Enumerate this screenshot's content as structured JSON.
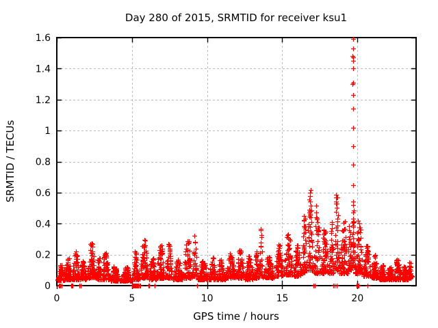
{
  "chart_data": {
    "type": "scatter",
    "title": "Day 280 of 2015, SRMTID for receiver ksu1",
    "xlabel": "GPS time / hours",
    "ylabel": "SRMTID / TECUs",
    "xlim": [
      0,
      23.9
    ],
    "ylim": [
      0,
      1.6
    ],
    "xticks": [
      {
        "v": 0,
        "label": "0"
      },
      {
        "v": 5,
        "label": "5"
      },
      {
        "v": 10,
        "label": "10"
      },
      {
        "v": 15,
        "label": "15"
      },
      {
        "v": 20,
        "label": "20"
      }
    ],
    "yticks": [
      {
        "v": 0,
        "label": "0"
      },
      {
        "v": 0.2,
        "label": "0.2"
      },
      {
        "v": 0.4,
        "label": "0.4"
      },
      {
        "v": 0.6,
        "label": "0.6"
      },
      {
        "v": 0.8,
        "label": "0.8"
      },
      {
        "v": 1,
        "label": "1"
      },
      {
        "v": 1.2,
        "label": "1.2"
      },
      {
        "v": 1.4,
        "label": "1.4"
      },
      {
        "v": 1.6,
        "label": "1.6"
      }
    ],
    "grid": {
      "visible": true,
      "color": "#b9b9b9",
      "dash": "3,3"
    },
    "marker": {
      "shape": "plus",
      "color": "#ff0000",
      "size": 7
    },
    "legend": null,
    "band_segments": [
      [
        0.03,
        0.5,
        60,
        0.035,
        0.14
      ],
      [
        0.5,
        1.0,
        60,
        0.04,
        0.18
      ],
      [
        1.0,
        1.5,
        65,
        0.04,
        0.23
      ],
      [
        1.5,
        2.0,
        60,
        0.04,
        0.16
      ],
      [
        2.0,
        2.6,
        75,
        0.05,
        0.28
      ],
      [
        2.6,
        3.0,
        50,
        0.04,
        0.18
      ],
      [
        3.0,
        3.5,
        60,
        0.04,
        0.22
      ],
      [
        3.5,
        4.2,
        80,
        0.03,
        0.13
      ],
      [
        4.2,
        5.0,
        85,
        0.03,
        0.12
      ],
      [
        5.0,
        5.5,
        55,
        0.04,
        0.22
      ],
      [
        5.5,
        6.1,
        70,
        0.05,
        0.3
      ],
      [
        6.1,
        6.6,
        55,
        0.04,
        0.18
      ],
      [
        6.6,
        7.2,
        70,
        0.05,
        0.26
      ],
      [
        7.2,
        7.7,
        60,
        0.05,
        0.27
      ],
      [
        7.7,
        8.4,
        75,
        0.04,
        0.17
      ],
      [
        8.4,
        9.0,
        70,
        0.05,
        0.3
      ],
      [
        9.0,
        9.35,
        40,
        0.06,
        0.35
      ],
      [
        9.35,
        10.1,
        80,
        0.04,
        0.16
      ],
      [
        10.1,
        10.6,
        55,
        0.04,
        0.21
      ],
      [
        10.6,
        11.2,
        65,
        0.04,
        0.17
      ],
      [
        11.2,
        11.9,
        75,
        0.05,
        0.21
      ],
      [
        11.9,
        12.5,
        65,
        0.05,
        0.23
      ],
      [
        12.5,
        13.1,
        65,
        0.04,
        0.19
      ],
      [
        13.1,
        13.45,
        40,
        0.05,
        0.22
      ],
      [
        13.45,
        13.7,
        30,
        0.06,
        0.37
      ],
      [
        13.7,
        14.5,
        85,
        0.05,
        0.19
      ],
      [
        14.5,
        15.1,
        65,
        0.06,
        0.27
      ],
      [
        15.1,
        15.7,
        70,
        0.07,
        0.34
      ],
      [
        15.7,
        16.3,
        65,
        0.06,
        0.26
      ],
      [
        16.3,
        16.65,
        45,
        0.08,
        0.46
      ],
      [
        16.65,
        17.05,
        55,
        0.1,
        0.65
      ],
      [
        17.05,
        17.55,
        60,
        0.08,
        0.52
      ],
      [
        17.55,
        18.1,
        65,
        0.08,
        0.36
      ],
      [
        18.1,
        18.45,
        45,
        0.08,
        0.42
      ],
      [
        18.45,
        18.8,
        45,
        0.1,
        0.6
      ],
      [
        18.8,
        19.35,
        65,
        0.08,
        0.46
      ],
      [
        19.35,
        19.62,
        35,
        0.1,
        0.4
      ],
      [
        19.62,
        19.85,
        40,
        0.12,
        0.55
      ],
      [
        19.85,
        20.35,
        65,
        0.08,
        0.43
      ],
      [
        20.35,
        20.9,
        70,
        0.06,
        0.26
      ],
      [
        20.9,
        21.4,
        65,
        0.05,
        0.2
      ],
      [
        21.4,
        21.9,
        65,
        0.04,
        0.14
      ],
      [
        21.9,
        22.4,
        65,
        0.04,
        0.12
      ],
      [
        22.4,
        22.9,
        65,
        0.04,
        0.17
      ],
      [
        22.9,
        23.35,
        60,
        0.04,
        0.13
      ],
      [
        23.35,
        23.65,
        35,
        0.05,
        0.15
      ]
    ],
    "spike_points": [
      [
        19.68,
        0.33
      ],
      [
        19.7,
        0.43
      ],
      [
        19.69,
        0.52
      ],
      [
        19.71,
        0.65
      ],
      [
        19.7,
        0.78
      ],
      [
        19.69,
        0.9
      ],
      [
        19.7,
        1.02
      ],
      [
        19.71,
        1.14
      ],
      [
        19.69,
        1.23
      ],
      [
        19.68,
        1.3
      ],
      [
        19.72,
        1.31
      ],
      [
        19.7,
        1.4
      ],
      [
        19.69,
        1.45
      ],
      [
        19.71,
        1.47
      ],
      [
        19.68,
        1.48
      ],
      [
        19.7,
        1.53
      ],
      [
        19.7,
        1.59
      ]
    ],
    "zero_markers": [
      0.12,
      0.18,
      0.25,
      0.3,
      0.95,
      1.0,
      1.05,
      1.5,
      1.58,
      5.0,
      5.03,
      5.06,
      5.1,
      5.13,
      5.16,
      5.2,
      5.23,
      5.26,
      5.3,
      5.33,
      5.38,
      5.42,
      5.5,
      5.55,
      6.1,
      6.14,
      6.5,
      6.53,
      9.35,
      17.08,
      17.15,
      18.4,
      18.48,
      18.62,
      19.92,
      19.97,
      20.02,
      20.08,
      20.65
    ]
  }
}
